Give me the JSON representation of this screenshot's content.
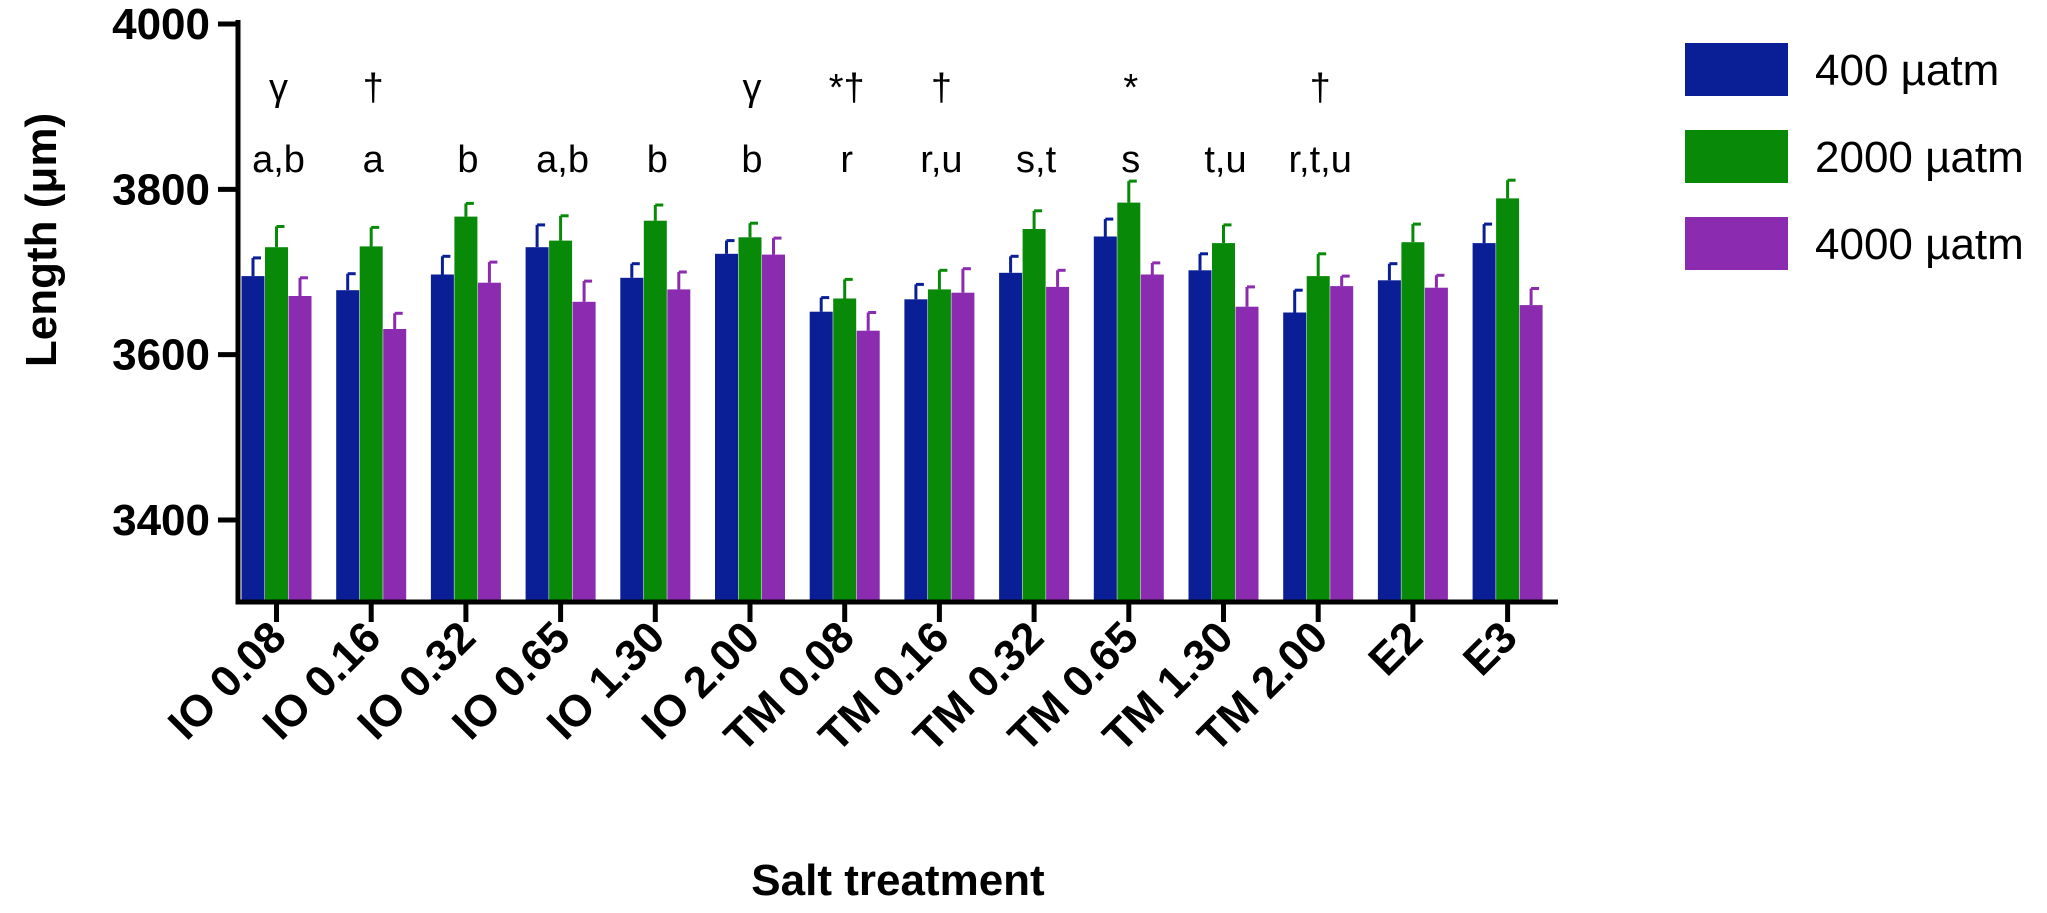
{
  "chart_data": {
    "type": "bar",
    "title": "",
    "xlabel": "Salt treatment",
    "ylabel": "Length (μm)",
    "ylim": [
      3300,
      4000
    ],
    "yticks": [
      3400,
      3600,
      3800,
      4000
    ],
    "grid": false,
    "legend_position": "right",
    "categories": [
      "IO 0.08",
      "IO 0.16",
      "IO 0.32",
      "IO 0.65",
      "IO 1.30",
      "IO 2.00",
      "TM 0.08",
      "TM 0.16",
      "TM 0.32",
      "TM 0.65",
      "TM 1.30",
      "TM 2.00",
      "E2",
      "E3"
    ],
    "series": [
      {
        "name": "400 µatm",
        "color": "#0a1e96",
        "values": [
          3695,
          3678,
          3697,
          3730,
          3693,
          3722,
          3652,
          3667,
          3699,
          3743,
          3702,
          3651,
          3690,
          3735
        ],
        "errors": [
          22,
          20,
          22,
          27,
          17,
          16,
          17,
          18,
          20,
          21,
          20,
          27,
          20,
          23
        ]
      },
      {
        "name": "2000 µatm",
        "color": "#088a08",
        "values": [
          3730,
          3731,
          3767,
          3738,
          3762,
          3742,
          3668,
          3679,
          3752,
          3784,
          3735,
          3695,
          3736,
          3789
        ],
        "errors": [
          25,
          23,
          16,
          30,
          19,
          17,
          23,
          23,
          22,
          26,
          22,
          27,
          22,
          22
        ]
      },
      {
        "name": "4000 µatm",
        "color": "#8a2bb0",
        "values": [
          3671,
          3631,
          3687,
          3664,
          3679,
          3721,
          3629,
          3675,
          3682,
          3697,
          3658,
          3683,
          3681,
          3660
        ],
        "errors": [
          22,
          19,
          25,
          25,
          21,
          20,
          22,
          29,
          20,
          14,
          24,
          12,
          15,
          20
        ]
      }
    ],
    "annotations": [
      {
        "category": "IO 0.08",
        "symbol": "γ",
        "letters": "a,b"
      },
      {
        "category": "IO 0.16",
        "symbol": "†",
        "letters": "a"
      },
      {
        "category": "IO 0.32",
        "symbol": "",
        "letters": "b"
      },
      {
        "category": "IO 0.65",
        "symbol": "",
        "letters": "a,b"
      },
      {
        "category": "IO 1.30",
        "symbol": "",
        "letters": "b"
      },
      {
        "category": "IO 2.00",
        "symbol": "γ",
        "letters": "b"
      },
      {
        "category": "TM 0.08",
        "symbol": "*†",
        "letters": "r"
      },
      {
        "category": "TM 0.16",
        "symbol": "†",
        "letters": "r,u"
      },
      {
        "category": "TM 0.32",
        "symbol": "",
        "letters": "s,t"
      },
      {
        "category": "TM 0.65",
        "symbol": "*",
        "letters": "s"
      },
      {
        "category": "TM 1.30",
        "symbol": "",
        "letters": "t,u"
      },
      {
        "category": "TM 2.00",
        "symbol": "†",
        "letters": "r,t,u"
      },
      {
        "category": "E2",
        "symbol": "",
        "letters": ""
      },
      {
        "category": "E3",
        "symbol": "",
        "letters": ""
      }
    ]
  }
}
